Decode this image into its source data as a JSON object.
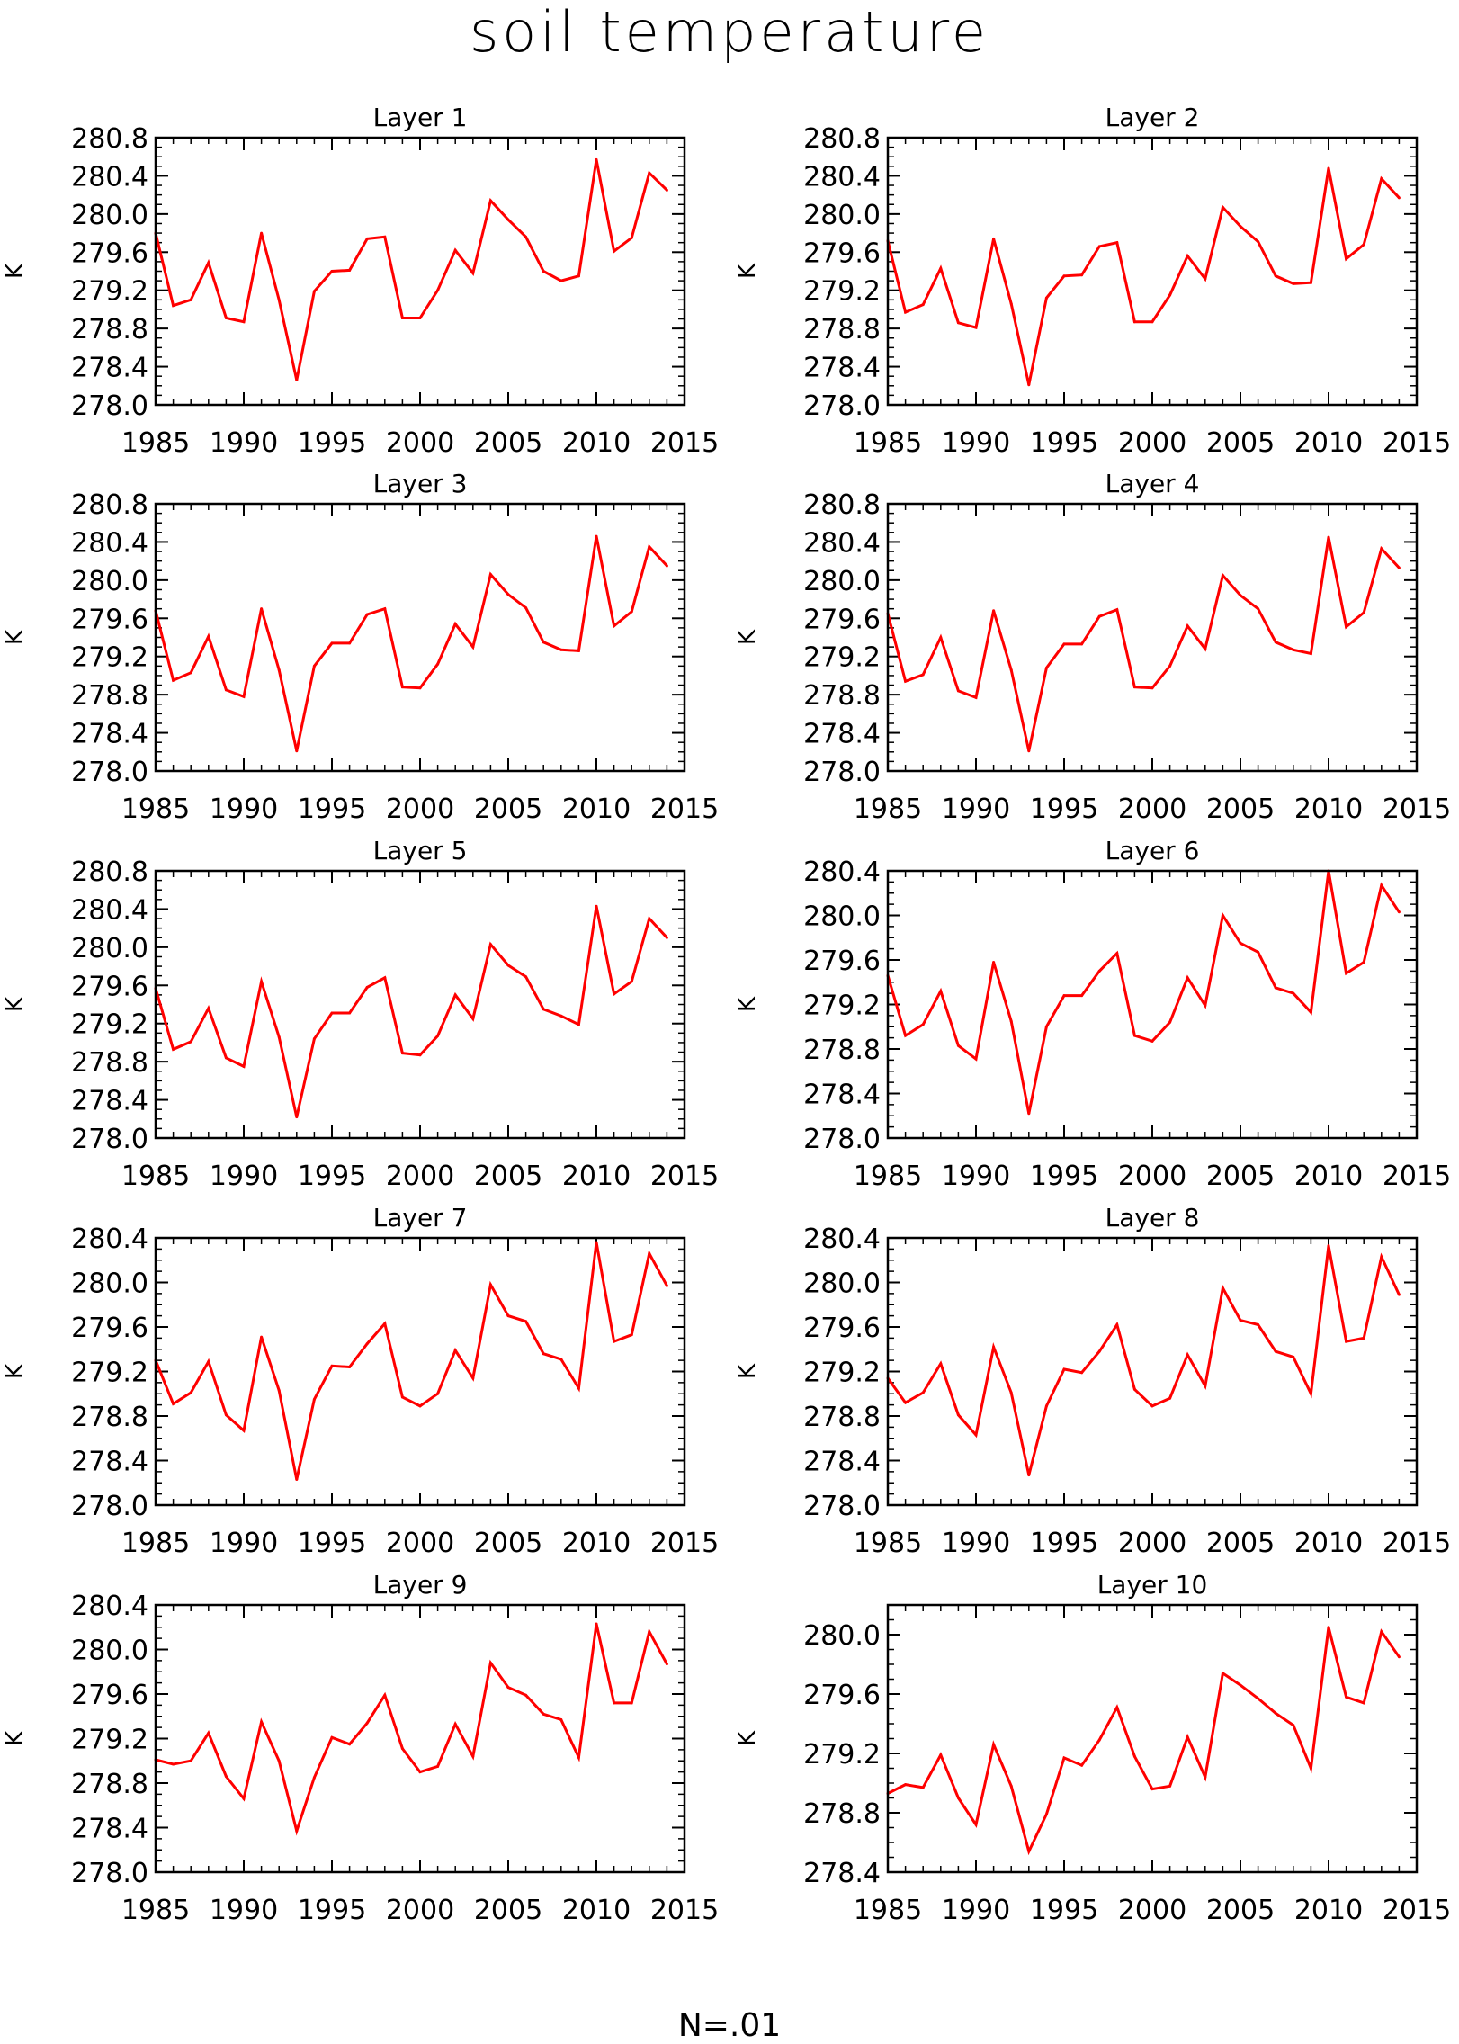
{
  "figure": {
    "title": "soil temperature",
    "footer": "N=.01"
  },
  "colors": {
    "line": "#ff0000",
    "axis": "#000000",
    "background": "#ffffff"
  },
  "chart_data": [
    {
      "type": "line",
      "title": "Layer 1",
      "ylabel": "K",
      "xlim": [
        1985,
        2015
      ],
      "ylim": [
        278.0,
        280.8
      ],
      "xticks": [
        "1985",
        "1990",
        "1995",
        "2000",
        "2005",
        "2010",
        "2015"
      ],
      "yticks": [
        "278.0",
        "278.4",
        "278.8",
        "279.2",
        "279.6",
        "280.0",
        "280.4",
        "280.8"
      ],
      "x": [
        1985,
        1986,
        1987,
        1988,
        1989,
        1990,
        1991,
        1992,
        1993,
        1994,
        1995,
        1996,
        1997,
        1998,
        1999,
        2000,
        2001,
        2002,
        2003,
        2004,
        2005,
        2006,
        2007,
        2008,
        2009,
        2010,
        2011,
        2012,
        2013,
        2014
      ],
      "values": [
        279.8,
        279.04,
        279.1,
        279.49,
        278.91,
        278.87,
        279.8,
        279.1,
        278.26,
        279.19,
        279.4,
        279.41,
        279.74,
        279.76,
        278.91,
        278.91,
        279.2,
        279.62,
        279.38,
        280.14,
        279.94,
        279.76,
        279.4,
        279.3,
        279.35,
        280.57,
        279.61,
        279.75,
        280.43,
        280.25
      ]
    },
    {
      "type": "line",
      "title": "Layer 2",
      "ylabel": "K",
      "xlim": [
        1985,
        2015
      ],
      "ylim": [
        278.0,
        280.8
      ],
      "xticks": [
        "1985",
        "1990",
        "1995",
        "2000",
        "2005",
        "2010",
        "2015"
      ],
      "yticks": [
        "278.0",
        "278.4",
        "278.8",
        "279.2",
        "279.6",
        "280.0",
        "280.4",
        "280.8"
      ],
      "x": [
        1985,
        1986,
        1987,
        1988,
        1989,
        1990,
        1991,
        1992,
        1993,
        1994,
        1995,
        1996,
        1997,
        1998,
        1999,
        2000,
        2001,
        2002,
        2003,
        2004,
        2005,
        2006,
        2007,
        2008,
        2009,
        2010,
        2011,
        2012,
        2013,
        2014
      ],
      "values": [
        279.72,
        278.97,
        279.05,
        279.43,
        278.86,
        278.81,
        279.74,
        279.06,
        278.21,
        279.12,
        279.35,
        279.36,
        279.66,
        279.7,
        278.87,
        278.87,
        279.15,
        279.56,
        279.32,
        280.07,
        279.87,
        279.71,
        279.35,
        279.27,
        279.28,
        280.48,
        279.53,
        279.68,
        280.37,
        280.17
      ]
    },
    {
      "type": "line",
      "title": "Layer 3",
      "ylabel": "K",
      "xlim": [
        1985,
        2015
      ],
      "ylim": [
        278.0,
        280.8
      ],
      "xticks": [
        "1985",
        "1990",
        "1995",
        "2000",
        "2005",
        "2010",
        "2015"
      ],
      "yticks": [
        "278.0",
        "278.4",
        "278.8",
        "279.2",
        "279.6",
        "280.0",
        "280.4",
        "280.8"
      ],
      "x": [
        1985,
        1986,
        1987,
        1988,
        1989,
        1990,
        1991,
        1992,
        1993,
        1994,
        1995,
        1996,
        1997,
        1998,
        1999,
        2000,
        2001,
        2002,
        2003,
        2004,
        2005,
        2006,
        2007,
        2008,
        2009,
        2010,
        2011,
        2012,
        2013,
        2014
      ],
      "values": [
        279.68,
        278.95,
        279.03,
        279.41,
        278.85,
        278.78,
        279.7,
        279.06,
        278.21,
        279.1,
        279.34,
        279.34,
        279.64,
        279.7,
        278.88,
        278.87,
        279.12,
        279.54,
        279.3,
        280.06,
        279.85,
        279.71,
        279.35,
        279.27,
        279.26,
        280.46,
        279.52,
        279.67,
        280.35,
        280.15
      ]
    },
    {
      "type": "line",
      "title": "Layer 4",
      "ylabel": "K",
      "xlim": [
        1985,
        2015
      ],
      "ylim": [
        278.0,
        280.8
      ],
      "xticks": [
        "1985",
        "1990",
        "1995",
        "2000",
        "2005",
        "2010",
        "2015"
      ],
      "yticks": [
        "278.0",
        "278.4",
        "278.8",
        "279.2",
        "279.6",
        "280.0",
        "280.4",
        "280.8"
      ],
      "x": [
        1985,
        1986,
        1987,
        1988,
        1989,
        1990,
        1991,
        1992,
        1993,
        1994,
        1995,
        1996,
        1997,
        1998,
        1999,
        2000,
        2001,
        2002,
        2003,
        2004,
        2005,
        2006,
        2007,
        2008,
        2009,
        2010,
        2011,
        2012,
        2013,
        2014
      ],
      "values": [
        279.65,
        278.94,
        279.01,
        279.4,
        278.84,
        278.77,
        279.68,
        279.06,
        278.21,
        279.08,
        279.33,
        279.33,
        279.62,
        279.69,
        278.88,
        278.87,
        279.1,
        279.52,
        279.28,
        280.05,
        279.84,
        279.7,
        279.35,
        279.27,
        279.23,
        280.45,
        279.51,
        279.66,
        280.33,
        280.13
      ]
    },
    {
      "type": "line",
      "title": "Layer 5",
      "ylabel": "K",
      "xlim": [
        1985,
        2015
      ],
      "ylim": [
        278.0,
        280.8
      ],
      "xticks": [
        "1985",
        "1990",
        "1995",
        "2000",
        "2005",
        "2010",
        "2015"
      ],
      "yticks": [
        "278.0",
        "278.4",
        "278.8",
        "279.2",
        "279.6",
        "280.0",
        "280.4",
        "280.8"
      ],
      "x": [
        1985,
        1986,
        1987,
        1988,
        1989,
        1990,
        1991,
        1992,
        1993,
        1994,
        1995,
        1996,
        1997,
        1998,
        1999,
        2000,
        2001,
        2002,
        2003,
        2004,
        2005,
        2006,
        2007,
        2008,
        2009,
        2010,
        2011,
        2012,
        2013,
        2014
      ],
      "values": [
        279.57,
        278.93,
        279.01,
        279.36,
        278.84,
        278.75,
        279.64,
        279.06,
        278.22,
        279.04,
        279.31,
        279.31,
        279.58,
        279.68,
        278.89,
        278.87,
        279.07,
        279.5,
        279.25,
        280.03,
        279.81,
        279.69,
        279.35,
        279.28,
        279.19,
        280.43,
        279.51,
        279.64,
        280.3,
        280.1
      ]
    },
    {
      "type": "line",
      "title": "Layer 6",
      "ylabel": "K",
      "xlim": [
        1985,
        2015
      ],
      "ylim": [
        278.0,
        280.4
      ],
      "xticks": [
        "1985",
        "1990",
        "1995",
        "2000",
        "2005",
        "2010",
        "2015"
      ],
      "yticks": [
        "278.0",
        "278.4",
        "278.8",
        "279.2",
        "279.6",
        "280.0",
        "280.4"
      ],
      "x": [
        1985,
        1986,
        1987,
        1988,
        1989,
        1990,
        1991,
        1992,
        1993,
        1994,
        1995,
        1996,
        1997,
        1998,
        1999,
        2000,
        2001,
        2002,
        2003,
        2004,
        2005,
        2006,
        2007,
        2008,
        2009,
        2010,
        2011,
        2012,
        2013,
        2014
      ],
      "values": [
        279.46,
        278.92,
        279.02,
        279.32,
        278.83,
        278.71,
        279.58,
        279.05,
        278.22,
        279.0,
        279.28,
        279.28,
        279.5,
        279.66,
        278.92,
        278.87,
        279.04,
        279.44,
        279.19,
        280.0,
        279.75,
        279.67,
        279.35,
        279.3,
        279.13,
        280.4,
        279.48,
        279.58,
        280.27,
        280.03
      ]
    },
    {
      "type": "line",
      "title": "Layer 7",
      "ylabel": "K",
      "xlim": [
        1985,
        2015
      ],
      "ylim": [
        278.0,
        280.4
      ],
      "xticks": [
        "1985",
        "1990",
        "1995",
        "2000",
        "2005",
        "2010",
        "2015"
      ],
      "yticks": [
        "278.0",
        "278.4",
        "278.8",
        "279.2",
        "279.6",
        "280.0",
        "280.4"
      ],
      "x": [
        1985,
        1986,
        1987,
        1988,
        1989,
        1990,
        1991,
        1992,
        1993,
        1994,
        1995,
        1996,
        1997,
        1998,
        1999,
        2000,
        2001,
        2002,
        2003,
        2004,
        2005,
        2006,
        2007,
        2008,
        2009,
        2010,
        2011,
        2012,
        2013,
        2014
      ],
      "values": [
        279.3,
        278.91,
        279.01,
        279.29,
        278.81,
        278.67,
        279.51,
        279.03,
        278.23,
        278.95,
        279.25,
        279.24,
        279.45,
        279.63,
        278.97,
        278.89,
        279.0,
        279.39,
        279.14,
        279.98,
        279.7,
        279.65,
        279.36,
        279.31,
        279.05,
        280.36,
        279.47,
        279.53,
        280.26,
        279.97
      ]
    },
    {
      "type": "line",
      "title": "Layer 8",
      "ylabel": "K",
      "xlim": [
        1985,
        2015
      ],
      "ylim": [
        278.0,
        280.4
      ],
      "xticks": [
        "1985",
        "1990",
        "1995",
        "2000",
        "2005",
        "2010",
        "2015"
      ],
      "yticks": [
        "278.0",
        "278.4",
        "278.8",
        "279.2",
        "279.6",
        "280.0",
        "280.4"
      ],
      "x": [
        1985,
        1986,
        1987,
        1988,
        1989,
        1990,
        1991,
        1992,
        1993,
        1994,
        1995,
        1996,
        1997,
        1998,
        1999,
        2000,
        2001,
        2002,
        2003,
        2004,
        2005,
        2006,
        2007,
        2008,
        2009,
        2010,
        2011,
        2012,
        2013,
        2014
      ],
      "values": [
        279.14,
        278.92,
        279.01,
        279.27,
        278.81,
        278.63,
        279.42,
        279.01,
        278.27,
        278.89,
        279.22,
        279.19,
        279.38,
        279.62,
        279.04,
        278.89,
        278.96,
        279.35,
        279.07,
        279.95,
        279.66,
        279.62,
        279.38,
        279.33,
        279.0,
        280.33,
        279.47,
        279.5,
        280.23,
        279.89
      ]
    },
    {
      "type": "line",
      "title": "Layer 9",
      "ylabel": "K",
      "xlim": [
        1985,
        2015
      ],
      "ylim": [
        278.0,
        280.4
      ],
      "xticks": [
        "1985",
        "1990",
        "1995",
        "2000",
        "2005",
        "2010",
        "2015"
      ],
      "yticks": [
        "278.0",
        "278.4",
        "278.8",
        "279.2",
        "279.6",
        "280.0",
        "280.4"
      ],
      "x": [
        1985,
        1986,
        1987,
        1988,
        1989,
        1990,
        1991,
        1992,
        1993,
        1994,
        1995,
        1996,
        1997,
        1998,
        1999,
        2000,
        2001,
        2002,
        2003,
        2004,
        2005,
        2006,
        2007,
        2008,
        2009,
        2010,
        2011,
        2012,
        2013,
        2014
      ],
      "values": [
        279.01,
        278.97,
        279.0,
        279.25,
        278.86,
        278.66,
        279.35,
        279.0,
        278.37,
        278.85,
        279.21,
        279.15,
        279.34,
        279.59,
        279.11,
        278.9,
        278.95,
        279.33,
        279.04,
        279.88,
        279.66,
        279.59,
        279.42,
        279.37,
        279.03,
        280.23,
        279.52,
        279.52,
        280.16,
        279.87
      ]
    },
    {
      "type": "line",
      "title": "Layer 10",
      "ylabel": "K",
      "xlim": [
        1985,
        2015
      ],
      "ylim": [
        278.4,
        280.2
      ],
      "xticks": [
        "1985",
        "1990",
        "1995",
        "2000",
        "2005",
        "2010",
        "2015"
      ],
      "yticks": [
        "278.4",
        "278.8",
        "279.2",
        "279.6",
        "280.0"
      ],
      "x": [
        1985,
        1986,
        1987,
        1988,
        1989,
        1990,
        1991,
        1992,
        1993,
        1994,
        1995,
        1996,
        1997,
        1998,
        1999,
        2000,
        2001,
        2002,
        2003,
        2004,
        2005,
        2006,
        2007,
        2008,
        2009,
        2010,
        2011,
        2012,
        2013,
        2014
      ],
      "values": [
        278.93,
        278.99,
        278.97,
        279.19,
        278.9,
        278.72,
        279.26,
        278.98,
        278.54,
        278.79,
        279.17,
        279.12,
        279.29,
        279.51,
        279.18,
        278.96,
        278.98,
        279.31,
        279.04,
        279.74,
        279.66,
        279.57,
        279.47,
        279.39,
        279.1,
        280.05,
        279.58,
        279.54,
        280.02,
        279.85
      ]
    }
  ]
}
